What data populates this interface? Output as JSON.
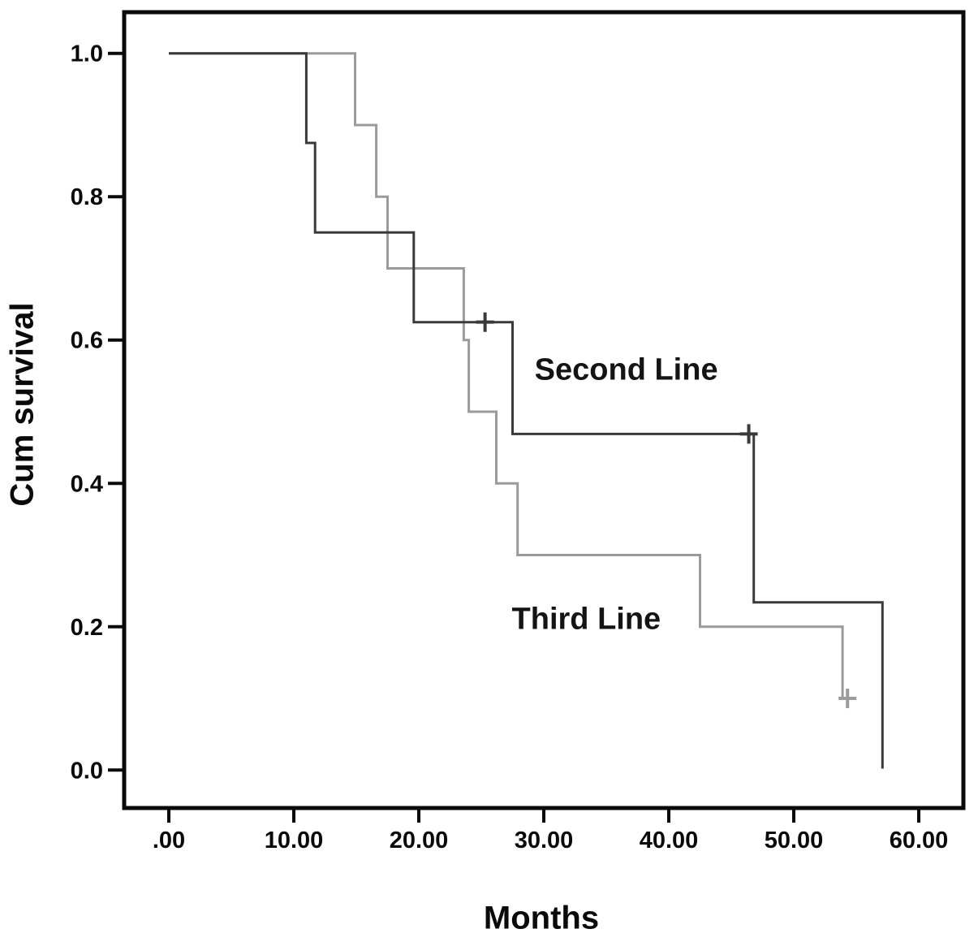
{
  "chart_data": {
    "type": "line",
    "subtype": "kaplan-meier-step-plot",
    "title": "",
    "xlabel": "Months",
    "ylabel": "Cum survival",
    "grid": false,
    "legend_position": "inline-annotations",
    "xlim": [
      -3.6,
      63.6
    ],
    "ylim": [
      -0.053,
      1.057
    ],
    "x_ticks": {
      "values": [
        0,
        10,
        20,
        30,
        40,
        50,
        60
      ],
      "labels": [
        ".00",
        "10.00",
        "20.00",
        "30.00",
        "40.00",
        "50.00",
        "60.00"
      ]
    },
    "y_ticks": {
      "values": [
        0.0,
        0.2,
        0.4,
        0.6,
        0.8,
        1.0
      ],
      "labels": [
        "0.0",
        "0.2",
        "0.4",
        "0.6",
        "0.8",
        "1.0"
      ]
    },
    "series": [
      {
        "name": "Third Line",
        "color": "#9b9b9b",
        "points": [
          [
            0,
            1.0
          ],
          [
            14.9,
            1.0
          ],
          [
            14.9,
            0.9
          ],
          [
            16.6,
            0.9
          ],
          [
            16.6,
            0.8
          ],
          [
            17.5,
            0.8
          ],
          [
            17.5,
            0.7
          ],
          [
            23.6,
            0.7
          ],
          [
            23.6,
            0.6
          ],
          [
            24.0,
            0.6
          ],
          [
            24.0,
            0.5
          ],
          [
            26.2,
            0.5
          ],
          [
            26.2,
            0.4
          ],
          [
            27.9,
            0.4
          ],
          [
            27.9,
            0.3
          ],
          [
            42.5,
            0.3
          ],
          [
            42.5,
            0.2
          ],
          [
            53.9,
            0.2
          ],
          [
            53.9,
            0.1
          ],
          [
            54.7,
            0.1
          ]
        ],
        "censor_marks": [
          [
            54.3,
            0.1
          ]
        ]
      },
      {
        "name": "Second Line",
        "color": "#3a3a3a",
        "points": [
          [
            0,
            1.0
          ],
          [
            11.0,
            1.0
          ],
          [
            11.0,
            0.875
          ],
          [
            11.7,
            0.875
          ],
          [
            11.7,
            0.75
          ],
          [
            19.6,
            0.75
          ],
          [
            19.6,
            0.625
          ],
          [
            27.5,
            0.625
          ],
          [
            27.5,
            0.469
          ],
          [
            46.8,
            0.469
          ],
          [
            46.8,
            0.234
          ],
          [
            57.1,
            0.234
          ],
          [
            57.1,
            0.002
          ]
        ],
        "censor_marks": [
          [
            25.3,
            0.625
          ],
          [
            46.4,
            0.469
          ]
        ]
      }
    ],
    "annotations": [
      {
        "text": "Second Line",
        "x": 36.6,
        "y": 0.558
      },
      {
        "text": "Third Line",
        "x": 33.4,
        "y": 0.21
      }
    ]
  }
}
